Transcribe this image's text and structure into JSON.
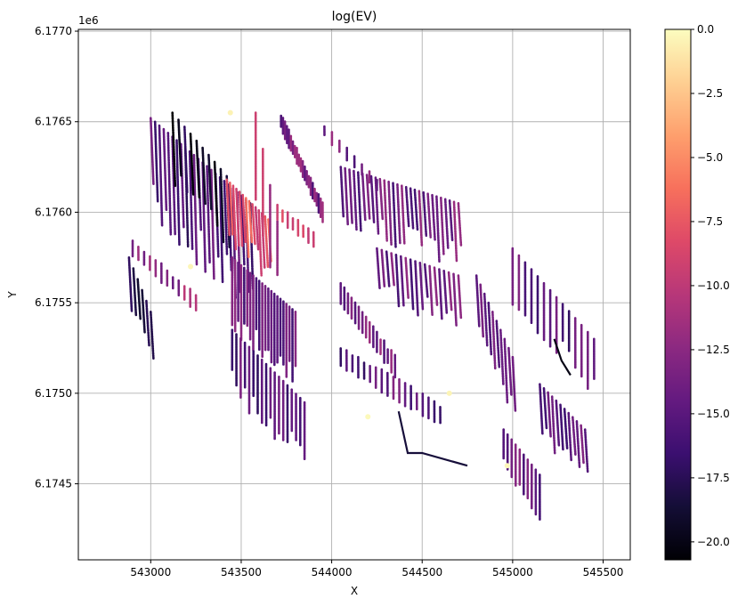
{
  "chart_data": {
    "type": "scatter",
    "title": "log(EV)",
    "xlabel": "X",
    "ylabel": "Y",
    "y_offset_label": "1e6",
    "xlim": [
      542600,
      545650
    ],
    "ylim": [
      6.17408,
      6.17701
    ],
    "x_ticks": [
      543000,
      543500,
      544000,
      544500,
      545000,
      545500
    ],
    "x_tick_labels": [
      "543000",
      "543500",
      "544000",
      "544500",
      "545000",
      "545500"
    ],
    "y_ticks": [
      6.1745,
      6.175,
      6.1755,
      6.176,
      6.1765,
      6.177
    ],
    "y_tick_labels": [
      "6.1745",
      "6.1750",
      "6.1755",
      "6.1760",
      "6.1765",
      "6.1770"
    ],
    "grid": true,
    "colormap": "magma",
    "colorbar": {
      "label": "",
      "vmin": -20.7,
      "vmax": 0.0,
      "ticks": [
        0.0,
        -2.5,
        -5.0,
        -7.5,
        -10.0,
        -12.5,
        -15.0,
        -17.5,
        -20.0
      ],
      "tick_labels": [
        "0.0",
        "−2.5",
        "−5.0",
        "−7.5",
        "−10.0",
        "−12.5",
        "−15.0",
        "−17.5",
        "−20.0"
      ]
    },
    "description": "Survey lines (points along flight/traverse lines) colored by log(EV); values mostly between -17 and -10, a few near 0.",
    "line_groups": [
      {
        "name": "NW block vertical lines",
        "x0": 543000,
        "y0": 6.17652,
        "x1": 543550,
        "y1": 6.17605,
        "dir": "v",
        "count": 24,
        "value": -15.5,
        "len": 0.00052
      },
      {
        "name": "NW dark core",
        "x0": 543120,
        "y0": 6.17655,
        "x1": 543420,
        "y1": 6.1762,
        "dir": "v",
        "count": 10,
        "value": -19.0,
        "len": 0.00035
      },
      {
        "name": "center-N grid block",
        "x0": 543420,
        "y0": 6.17618,
        "x1": 543650,
        "y1": 6.17596,
        "dir": "v",
        "count": 14,
        "value": -8.0,
        "len": 0.0003
      },
      {
        "name": "north diagonal lines",
        "x0": 543580,
        "y0": 6.17655,
        "x1": 543700,
        "y1": 6.17595,
        "dir": "d",
        "count": 4,
        "value": -11.0,
        "len": 0.0006
      },
      {
        "name": "NE diagonal block",
        "x0": 543720,
        "y0": 6.1765,
        "x1": 543950,
        "y1": 6.176,
        "dir": "h",
        "count": 22,
        "value": -13.5,
        "len": 0.0003
      },
      {
        "name": "lower-left stack",
        "x0": 543700,
        "y0": 6.176,
        "x1": 543900,
        "y1": 6.17585,
        "dir": "h",
        "count": 8,
        "value": -9.0,
        "len": 0.00025
      },
      {
        "name": "NE short block",
        "x0": 543960,
        "y0": 6.17645,
        "x1": 544250,
        "y1": 6.17615,
        "dir": "h",
        "count": 8,
        "value": -14.0,
        "len": 0.0002
      },
      {
        "name": "NE vertical block",
        "x0": 544050,
        "y0": 6.17625,
        "x1": 544700,
        "y1": 6.17605,
        "dir": "v",
        "count": 28,
        "value": -14.0,
        "len": 0.0003
      },
      {
        "name": "W block",
        "x0": 542900,
        "y0": 6.1758,
        "x1": 543250,
        "y1": 6.1755,
        "dir": "h",
        "count": 12,
        "value": -12.0,
        "len": 0.0003
      },
      {
        "name": "W dark lines",
        "x0": 542880,
        "y0": 6.17575,
        "x1": 543000,
        "y1": 6.17545,
        "dir": "v",
        "count": 6,
        "value": -18.5,
        "len": 0.00025
      },
      {
        "name": "central diagonal block",
        "x0": 543450,
        "y0": 6.17575,
        "x1": 543800,
        "y1": 6.17545,
        "dir": "d",
        "count": 22,
        "value": -14.5,
        "len": 0.0005
      },
      {
        "name": "south-central block",
        "x0": 543450,
        "y0": 6.17535,
        "x1": 543850,
        "y1": 6.17495,
        "dir": "d",
        "count": 18,
        "value": -15.0,
        "len": 0.00045
      },
      {
        "name": "central horizontal block",
        "x0": 544050,
        "y0": 6.17555,
        "x1": 544350,
        "y1": 6.17515,
        "dir": "h",
        "count": 16,
        "value": -13.5,
        "len": 0.00035
      },
      {
        "name": "south horizontal block",
        "x0": 544050,
        "y0": 6.1752,
        "x1": 544600,
        "y1": 6.17488,
        "dir": "h",
        "count": 18,
        "value": -15.0,
        "len": 0.0004
      },
      {
        "name": "east-central vertical",
        "x0": 544250,
        "y0": 6.1758,
        "x1": 544700,
        "y1": 6.17565,
        "dir": "v",
        "count": 18,
        "value": -14.0,
        "len": 0.00025
      },
      {
        "name": "E diagonal block",
        "x0": 545000,
        "y0": 6.1758,
        "x1": 545450,
        "y1": 6.1753,
        "dir": "d",
        "count": 14,
        "value": -15.0,
        "len": 0.0004
      },
      {
        "name": "E vertical block",
        "x0": 544800,
        "y0": 6.17565,
        "x1": 545000,
        "y1": 6.1752,
        "dir": "v",
        "count": 10,
        "value": -14.5,
        "len": 0.0003
      },
      {
        "name": "SE block",
        "x0": 545150,
        "y0": 6.17505,
        "x1": 545400,
        "y1": 6.1748,
        "dir": "v",
        "count": 12,
        "value": -14.5,
        "len": 0.00028
      },
      {
        "name": "S block",
        "x0": 544950,
        "y0": 6.1748,
        "x1": 545150,
        "y1": 6.17455,
        "dir": "d",
        "count": 10,
        "value": -14.0,
        "len": 0.0003
      }
    ],
    "polylines": [
      {
        "name": "southern traverse",
        "points": [
          [
            544370,
            6.1749
          ],
          [
            544420,
            6.17467
          ],
          [
            544500,
            6.17467
          ],
          [
            544750,
            6.1746
          ]
        ],
        "value": -18.5
      },
      {
        "name": "SE dark curves",
        "points": [
          [
            545230,
            6.1753
          ],
          [
            545270,
            6.17518
          ],
          [
            545320,
            6.1751
          ]
        ],
        "value": -20.0
      }
    ],
    "highlight_points": [
      {
        "x": 543440,
        "y": 6.17655,
        "value": -0.5
      },
      {
        "x": 543220,
        "y": 6.1757,
        "value": -0.3
      },
      {
        "x": 544200,
        "y": 6.17487,
        "value": -0.2
      },
      {
        "x": 544970,
        "y": 6.1746,
        "value": -0.3
      },
      {
        "x": 544650,
        "y": 6.175,
        "value": -0.4
      }
    ]
  }
}
